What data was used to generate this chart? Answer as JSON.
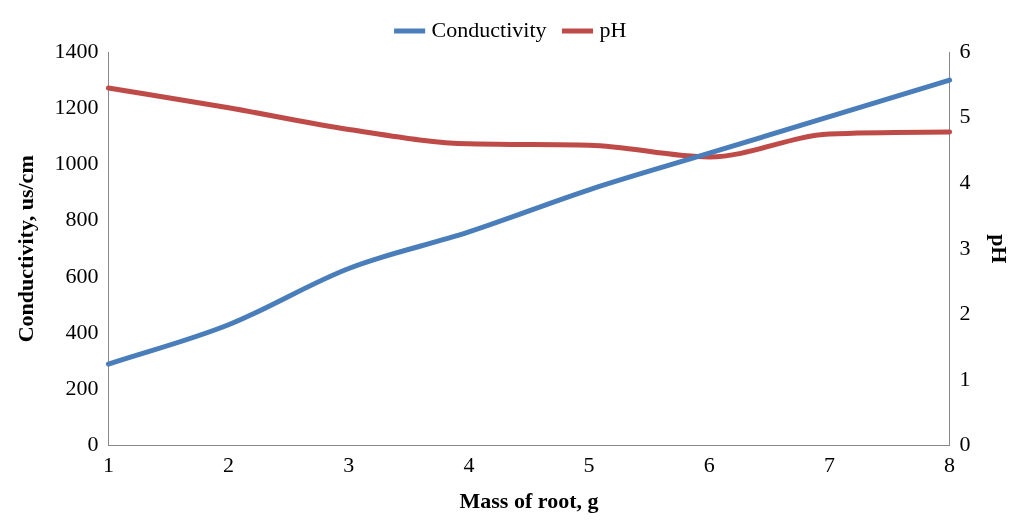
{
  "chart_data": {
    "type": "line",
    "xlabel": "Mass of root, g",
    "ylabel": "Conductivity, us/cm",
    "y2label": "pH",
    "x": [
      1,
      2,
      3,
      4,
      5,
      6,
      7,
      8
    ],
    "xlim": [
      1,
      8
    ],
    "xticks": [
      1,
      2,
      3,
      4,
      5,
      6,
      7,
      8
    ],
    "ylim": [
      0,
      1400
    ],
    "yticks": [
      0,
      200,
      400,
      600,
      800,
      1000,
      1200,
      1400
    ],
    "y2lim": [
      0,
      6
    ],
    "y2ticks": [
      0,
      1,
      2,
      3,
      4,
      5,
      6
    ],
    "series": [
      {
        "name": "Conductivity",
        "color": "#4a7ebb",
        "values": [
          290,
          430,
          630,
          760,
          910,
          1040,
          1170,
          1300
        ]
      },
      {
        "name": "pH",
        "color": "#be4b48",
        "axis": "y2",
        "values": [
          5.45,
          5.15,
          4.82,
          4.6,
          4.58,
          4.4,
          4.75,
          4.78
        ]
      }
    ],
    "legend": "top",
    "grid": false,
    "marker": "none",
    "line_style": "solid"
  }
}
